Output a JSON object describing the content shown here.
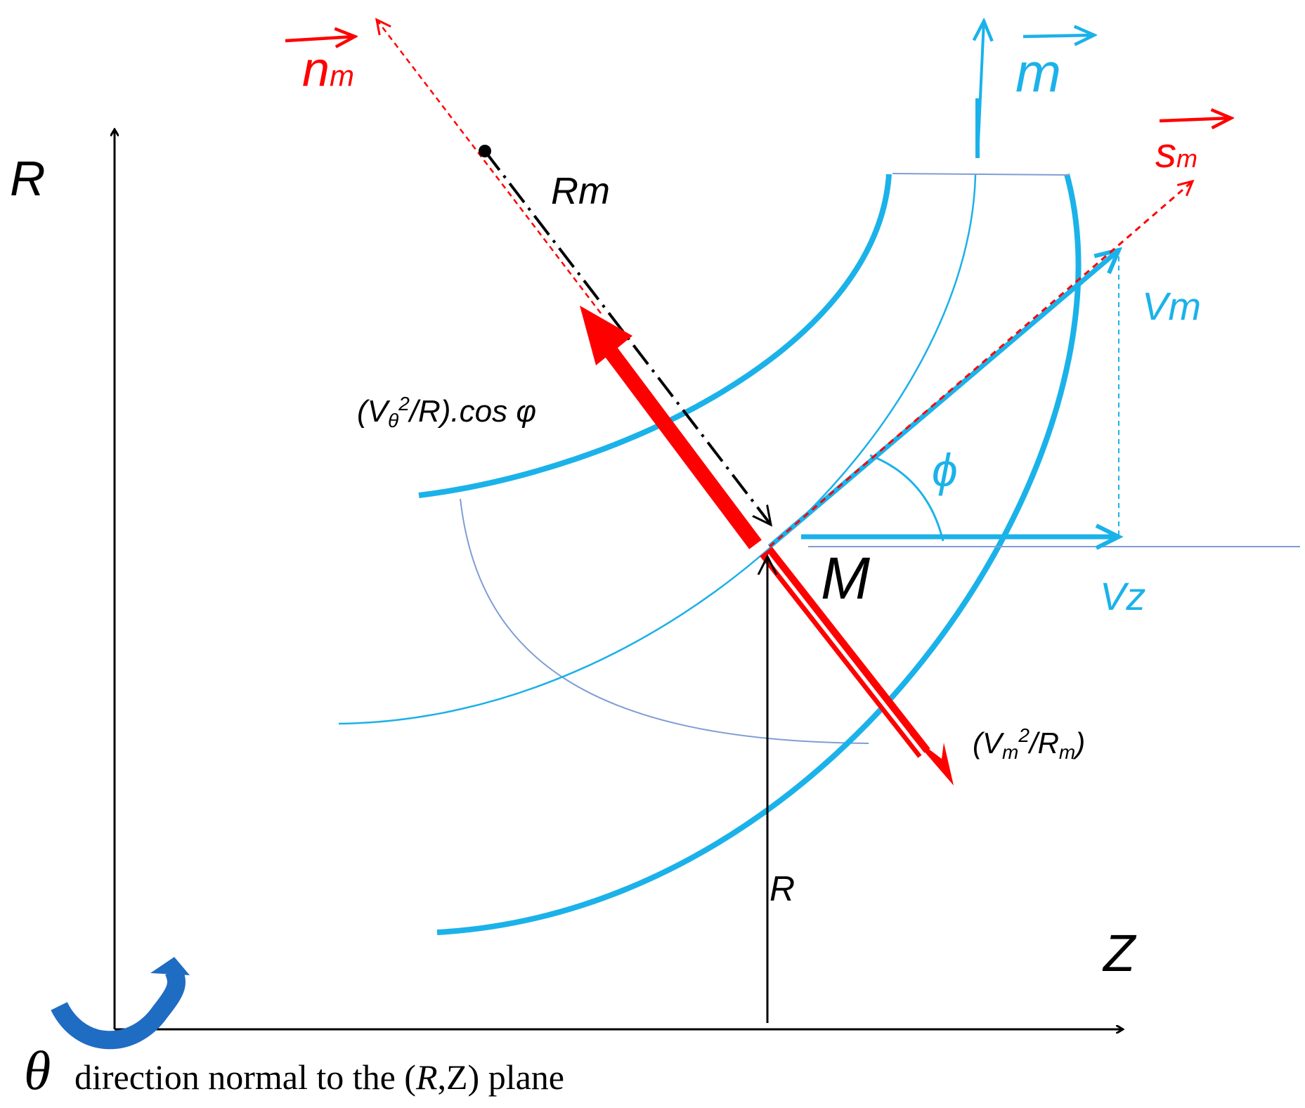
{
  "colors": {
    "axis": "#000000",
    "red": "#ff0000",
    "cyan": "#1bb2ea",
    "cyan_thin": "#1cb0e8",
    "grey_blue": "#7f9dd5",
    "rotation_arrow": "#1f6cc3"
  },
  "labels": {
    "axis_r": "R",
    "axis_z": "Z",
    "vec_nm": "n",
    "vec_nm_sub": "m",
    "vec_m": "m",
    "vec_sm": "s",
    "vec_sm_sub": "m",
    "rm": "Rm",
    "vm": "Vm",
    "vz": "Vz",
    "phi": "ϕ",
    "point_m": "M",
    "radius_r": "R",
    "accel_theta_pre": "(V",
    "accel_theta_sub": "θ",
    "accel_theta_sup": "2",
    "accel_theta_post": "/R).cos φ",
    "accel_m_pre": "(V",
    "accel_m_sub1": "m",
    "accel_m_sup": "2",
    "accel_m_mid": "/R",
    "accel_m_sub2": "m",
    "accel_m_post": ")",
    "theta_symbol": "θ",
    "theta_caption_pre": "direction normal to the (",
    "theta_caption_r": "R",
    "theta_caption_post": ",Z) plane"
  }
}
